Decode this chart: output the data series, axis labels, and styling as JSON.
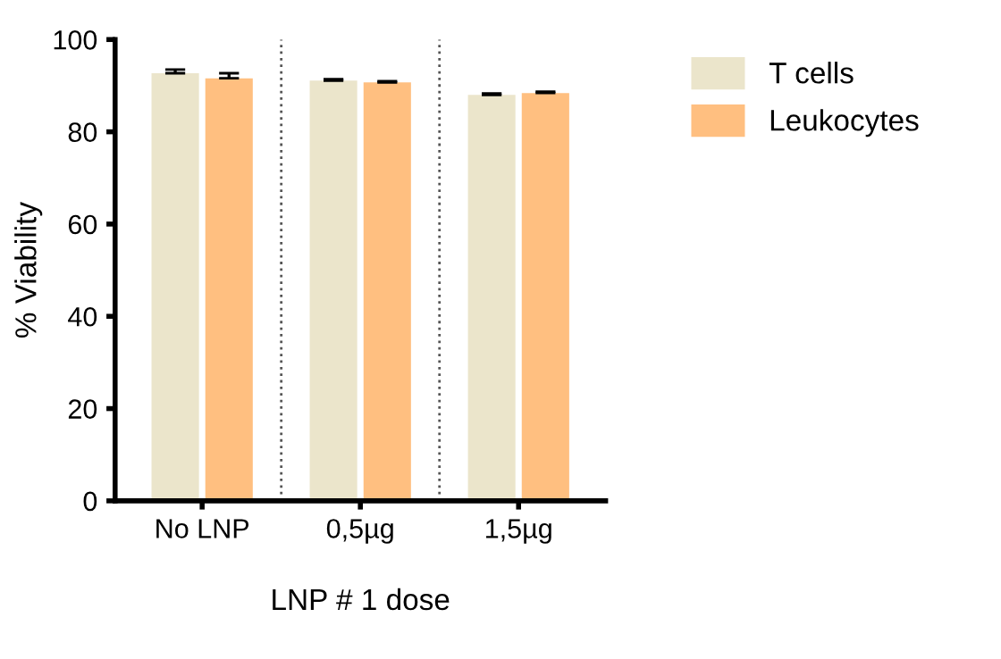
{
  "chart_data": {
    "type": "bar",
    "xlabel": "LNP # 1 dose",
    "ylabel": "% Viability",
    "categories": [
      "No LNP",
      "0,5µg",
      "1,5µg"
    ],
    "series": [
      {
        "name": "T cells",
        "color": "#ebe5cb",
        "values": [
          92.7,
          91.1,
          88.0
        ],
        "errors": [
          0.8,
          0.3,
          0.3
        ]
      },
      {
        "name": "Leukocytes",
        "color": "#ffbf80",
        "values": [
          91.6,
          90.7,
          88.4
        ],
        "errors": [
          1.1,
          0.3,
          0.3
        ]
      }
    ],
    "ylim": [
      0,
      100
    ],
    "yticks": [
      0,
      20,
      40,
      60,
      80,
      100
    ],
    "grid": false,
    "legend": "top right"
  }
}
